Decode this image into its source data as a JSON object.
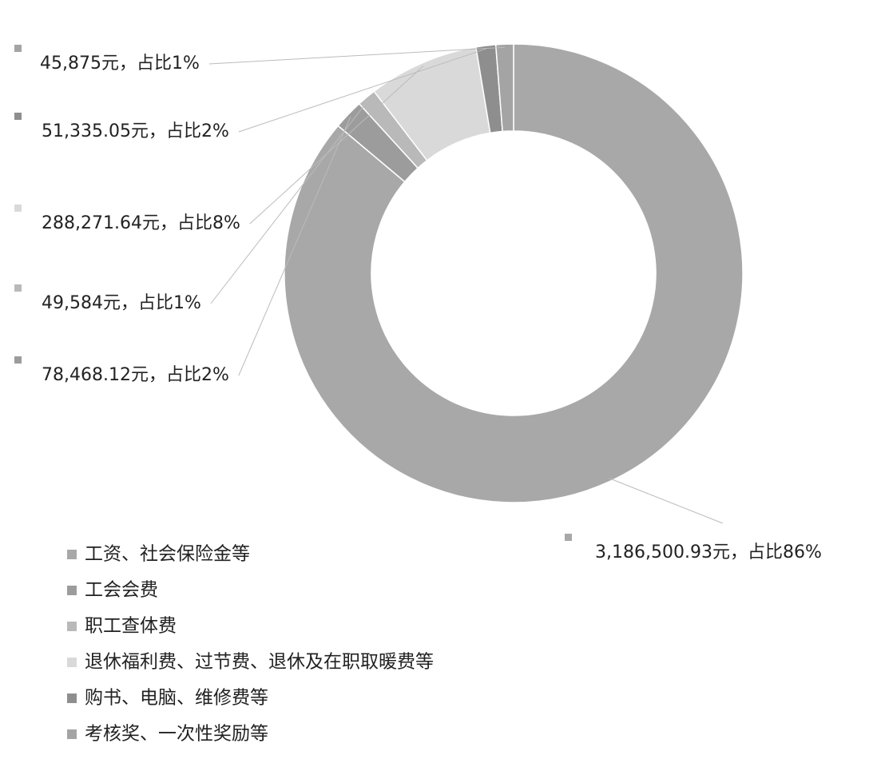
{
  "chart_data": {
    "type": "pie",
    "donut": true,
    "categories": [
      "工资、社会保险金等",
      "工会会费",
      "职工查体费",
      "退休福利费、过节费、退休及在职取暖费等",
      "购书、电脑、维修费等",
      "考核奖、一次性奖励等"
    ],
    "values": [
      3186500.93,
      78468.12,
      49584,
      288271.64,
      51335.05,
      45875
    ],
    "value_labels": [
      "3,186,500.93元，占比86%",
      "78,468.12元，占比2%",
      "49,584元，占比1%",
      "288,271.64元，占比8%",
      "51,335.05元，占比2%",
      "45,875元，占比1%"
    ],
    "colors": [
      "#a8a8a8",
      "#9c9c9c",
      "#b9b9b9",
      "#d9d9d9",
      "#8e8e8e",
      "#a4a4a4"
    ]
  }
}
